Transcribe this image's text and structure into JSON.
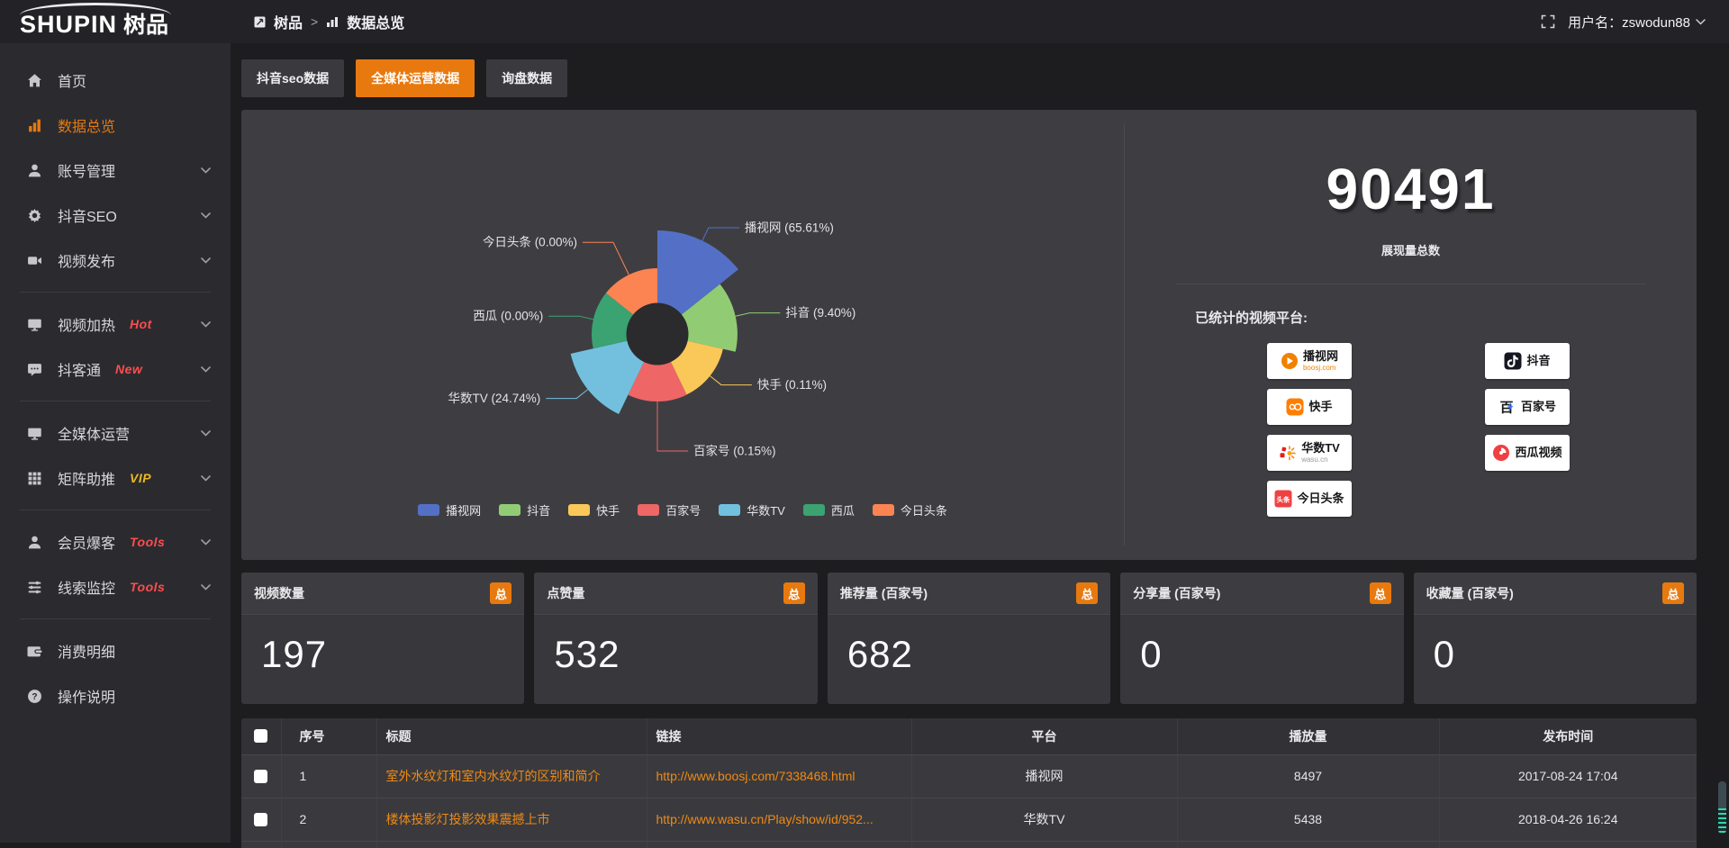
{
  "theme": {
    "accent": "#e8790f",
    "link_orange": "#ef8a13",
    "badge_red": "#ff4d4f",
    "badge_gold": "#edb820"
  },
  "topbar": {
    "logo_en": "SHUPIN",
    "logo_cn": "树品",
    "breadcrumb": [
      "树品",
      "数据总览"
    ],
    "breadcrumb_separator": ">",
    "username": "用户名：zswodun88"
  },
  "sidebar": {
    "items": [
      {
        "id": "home",
        "label": "首页",
        "icon": "home"
      },
      {
        "id": "overview",
        "label": "数据总览",
        "icon": "bar-chart",
        "active": true
      },
      {
        "id": "account",
        "label": "账号管理",
        "icon": "user",
        "chevron": true
      },
      {
        "id": "douyin-seo",
        "label": "抖音SEO",
        "icon": "gear",
        "chevron": true
      },
      {
        "id": "video-publish",
        "label": "视频发布",
        "icon": "video",
        "chevron": true
      },
      {
        "divider": true
      },
      {
        "id": "video-heat",
        "label": "视频加热",
        "icon": "monitor",
        "badge": "Hot",
        "badge_color": "#ff4d4f",
        "chevron": true
      },
      {
        "id": "douketong",
        "label": "抖客通",
        "icon": "chat",
        "badge": "New",
        "badge_color": "#ff4d4f",
        "chevron": true
      },
      {
        "divider": true
      },
      {
        "id": "media-ops",
        "label": "全媒体运营",
        "icon": "monitor",
        "chevron": true
      },
      {
        "id": "matrix-boost",
        "label": "矩阵助推",
        "icon": "grid",
        "badge": "VIP",
        "badge_color": "#edb820",
        "chevron": true
      },
      {
        "divider": true
      },
      {
        "id": "member-burst",
        "label": "会员爆客",
        "icon": "user",
        "badge": "Tools",
        "badge_color": "#ff4d4f",
        "chevron": true
      },
      {
        "id": "clue-monitor",
        "label": "线索监控",
        "icon": "sliders",
        "badge": "Tools",
        "badge_color": "#ff4d4f",
        "chevron": true
      },
      {
        "divider": true
      },
      {
        "id": "expense",
        "label": "消费明细",
        "icon": "wallet"
      },
      {
        "id": "help",
        "label": "操作说明",
        "icon": "question"
      }
    ]
  },
  "tabs": [
    {
      "id": "douyin-seo-data",
      "label": "抖音seo数据",
      "active": false
    },
    {
      "id": "media-ops-data",
      "label": "全媒体运营数据",
      "active": true
    },
    {
      "id": "inquiry-data",
      "label": "询盘数据",
      "active": false
    }
  ],
  "chart_data": {
    "type": "pie",
    "subtype": "nightingale-rose",
    "title": "",
    "labels": [
      "播视网",
      "抖音",
      "快手",
      "百家号",
      "华数TV",
      "西瓜",
      "今日头条"
    ],
    "values_pct": [
      65.61,
      9.4,
      0.11,
      0.15,
      24.74,
      0.0,
      0.0
    ],
    "colors": [
      "#5470c6",
      "#91cc75",
      "#fac858",
      "#ee6666",
      "#73c0de",
      "#3ba272",
      "#fc8452"
    ],
    "label_format": "{name} ({value}%)",
    "legend_position": "bottom",
    "donut": true
  },
  "summary": {
    "total": "90491",
    "total_label": "展现量总数",
    "platforms_label": "已统计的视频平台:",
    "platforms": [
      {
        "name": "播视网",
        "sub": "boosj.com",
        "sub_color": "#f08200",
        "icon": "boosj"
      },
      {
        "name": "快手",
        "icon": "kuaishou"
      },
      {
        "name": "华数TV",
        "sub": "wasu.cn",
        "sub_color": "#9a9a9e",
        "icon": "wasu"
      },
      {
        "name": "今日头条",
        "icon": "toutiao"
      },
      {
        "name": "抖音",
        "icon": "douyin"
      },
      {
        "name": "百家号",
        "icon": "baijiahao"
      },
      {
        "name": "西瓜视频",
        "icon": "xigua"
      }
    ]
  },
  "stat_cards": [
    {
      "label": "视频数量",
      "badge": "总",
      "value": "197"
    },
    {
      "label": "点赞量",
      "badge": "总",
      "value": "532"
    },
    {
      "label": "推荐量 (百家号)",
      "badge": "总",
      "value": "682"
    },
    {
      "label": "分享量 (百家号)",
      "badge": "总",
      "value": "0"
    },
    {
      "label": "收藏量 (百家号)",
      "badge": "总",
      "value": "0"
    }
  ],
  "table": {
    "headers": [
      "序号",
      "标题",
      "链接",
      "平台",
      "播放量",
      "发布时间"
    ],
    "rows": [
      {
        "no": "1",
        "title": "室外水纹灯和室内水纹灯的区别和简介",
        "link": "http://www.boosj.com/7338468.html",
        "platform": "播视网",
        "plays": "8497",
        "time": "2017-08-24 17:04"
      },
      {
        "no": "2",
        "title": "楼体投影灯投影效果震撼上市",
        "link": "http://www.wasu.cn/Play/show/id/952...",
        "platform": "华数TV",
        "plays": "5438",
        "time": "2018-04-26 16:24"
      }
    ]
  }
}
